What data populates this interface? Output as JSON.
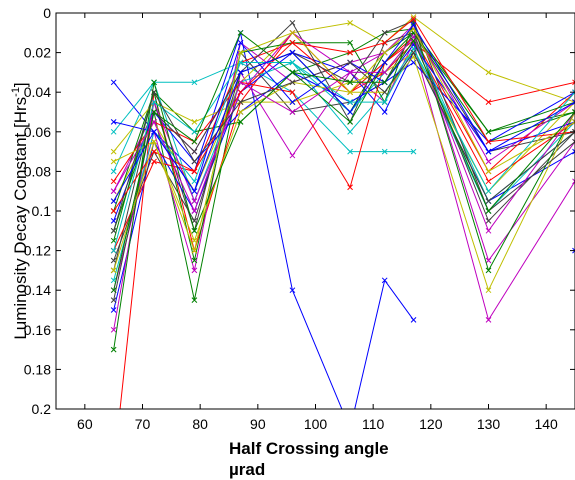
{
  "chart_data": {
    "type": "line",
    "xlabel": "Half Crossing angle",
    "xlabel_unit": "µrad",
    "ylabel_main": "Luminosity Decay Constant [Hrs",
    "ylabel_sup": "-1",
    "ylabel_end": "]",
    "y_inverted": true,
    "xlim": [
      55,
      145
    ],
    "ylim": [
      0,
      0.2
    ],
    "x_ticks": [
      "60",
      "70",
      "80",
      "90",
      "100",
      "110",
      "120",
      "130",
      "140"
    ],
    "y_ticks": [
      "0",
      "0.02",
      "0.04",
      "0.06",
      "0.08",
      "0.1",
      "0.12",
      "0.14",
      "0.16",
      "0.18",
      "0.2"
    ],
    "grid": false,
    "marker": "x",
    "x": [
      65,
      72,
      79,
      87,
      96,
      106,
      112,
      117,
      130,
      145
    ],
    "colors": [
      "#0000ff",
      "#008000",
      "#ff0000",
      "#00bfbf",
      "#bf00bf",
      "#bfbf00",
      "#404040"
    ],
    "series": [
      {
        "values": [
          0.035,
          0.06,
          0.08,
          0.01,
          0.14,
          0.21,
          0.135,
          0.155,
          null,
          0.12
        ]
      },
      {
        "values": [
          0.11,
          0.05,
          0.145,
          0.03,
          0.02,
          0.05,
          0.02,
          0.01,
          0.065,
          0.05
        ]
      },
      {
        "values": [
          0.23,
          0.04,
          0.12,
          0.045,
          0.01,
          0.04,
          0.03,
          0.015,
          0.045,
          0.035
        ]
      },
      {
        "values": [
          0.06,
          0.035,
          0.035,
          0.025,
          0.04,
          0.07,
          0.07,
          0.07,
          null,
          null
        ]
      },
      {
        "values": [
          0.09,
          0.05,
          0.07,
          0.03,
          0.072,
          0.03,
          0.045,
          0.015,
          0.155,
          0.085
        ]
      },
      {
        "values": [
          0.095,
          0.055,
          0.09,
          0.035,
          0.01,
          0.005,
          0.015,
          0.002,
          0.03,
          0.045
        ]
      },
      {
        "values": [
          0.13,
          0.045,
          0.11,
          0.02,
          0.05,
          0.045,
          0.035,
          0.01,
          0.07,
          0.06
        ]
      },
      {
        "values": [
          0.15,
          0.065,
          0.1,
          0.04,
          0.02,
          0.03,
          0.05,
          0.02,
          0.095,
          0.07
        ]
      },
      {
        "values": [
          0.1,
          0.04,
          0.06,
          0.055,
          0.03,
          0.02,
          0.01,
          0.008,
          0.06,
          0.05
        ]
      },
      {
        "values": [
          0.12,
          0.075,
          0.08,
          0.025,
          0.015,
          0.04,
          0.025,
          0.012,
          0.08,
          0.04
        ]
      },
      {
        "values": [
          0.08,
          0.035,
          0.095,
          0.035,
          0.025,
          0.06,
          0.04,
          0.018,
          0.1,
          0.055
        ]
      },
      {
        "values": [
          0.14,
          0.06,
          0.13,
          0.015,
          0.035,
          0.025,
          0.02,
          0.006,
          0.125,
          0.065
        ]
      },
      {
        "values": [
          0.07,
          0.045,
          0.055,
          0.045,
          0.045,
          0.035,
          0.03,
          0.02,
          0.09,
          0.045
        ]
      },
      {
        "values": [
          0.125,
          0.07,
          0.105,
          0.03,
          0.005,
          0.055,
          0.015,
          0.01,
          0.105,
          0.06
        ]
      },
      {
        "values": [
          0.105,
          0.05,
          0.075,
          0.05,
          0.03,
          0.045,
          0.035,
          0.025,
          0.065,
          0.04
        ]
      },
      {
        "values": [
          0.115,
          0.04,
          0.125,
          0.02,
          0.015,
          0.015,
          0.045,
          0.005,
          0.13,
          0.05
        ]
      },
      {
        "values": [
          0.085,
          0.055,
          0.065,
          0.035,
          0.04,
          0.088,
          0.025,
          0.014,
          0.085,
          0.055
        ]
      },
      {
        "values": [
          0.135,
          0.06,
          0.085,
          0.025,
          0.025,
          0.05,
          0.03,
          0.012,
          0.095,
          0.06
        ]
      },
      {
        "values": [
          0.16,
          0.045,
          0.095,
          0.04,
          0.01,
          0.03,
          0.02,
          0.008,
          0.075,
          0.045
        ]
      },
      {
        "values": [
          0.075,
          0.065,
          0.115,
          0.05,
          0.035,
          0.04,
          0.04,
          0.022,
          0.14,
          0.05
        ]
      },
      {
        "values": [
          0.145,
          0.05,
          0.07,
          0.03,
          0.02,
          0.035,
          0.01,
          0.004,
          0.1,
          0.065
        ]
      },
      {
        "values": [
          0.055,
          0.06,
          0.09,
          0.015,
          0.045,
          0.025,
          0.035,
          0.016,
          0.07,
          0.055
        ]
      },
      {
        "values": [
          0.17,
          0.035,
          0.11,
          0.055,
          0.03,
          0.055,
          0.025,
          0.01,
          0.06,
          0.045
        ]
      },
      {
        "values": [
          0.1,
          0.07,
          0.08,
          0.04,
          0.015,
          0.02,
          0.015,
          0.003,
          0.065,
          0.06
        ]
      },
      {
        "values": [
          0.12,
          0.045,
          0.06,
          0.025,
          0.025,
          0.045,
          0.045,
          0.018,
          0.09,
          0.04
        ]
      },
      {
        "values": [
          0.09,
          0.055,
          0.1,
          0.035,
          0.05,
          0.03,
          0.03,
          0.012,
          0.11,
          0.05
        ]
      },
      {
        "values": [
          0.13,
          0.065,
          0.12,
          0.02,
          0.01,
          0.04,
          0.02,
          0.008,
          0.08,
          0.055
        ]
      },
      {
        "values": [
          0.11,
          0.04,
          0.075,
          0.045,
          0.035,
          0.025,
          0.04,
          0.02,
          0.095,
          0.06
        ]
      },
      {
        "values": [
          0.095,
          0.06,
          0.09,
          0.03,
          0.02,
          0.05,
          0.025,
          0.006,
          0.07,
          0.045
        ]
      },
      {
        "values": [
          0.14,
          0.05,
          0.065,
          0.01,
          0.03,
          0.035,
          0.035,
          0.014,
          0.1,
          0.05
        ]
      }
    ]
  }
}
